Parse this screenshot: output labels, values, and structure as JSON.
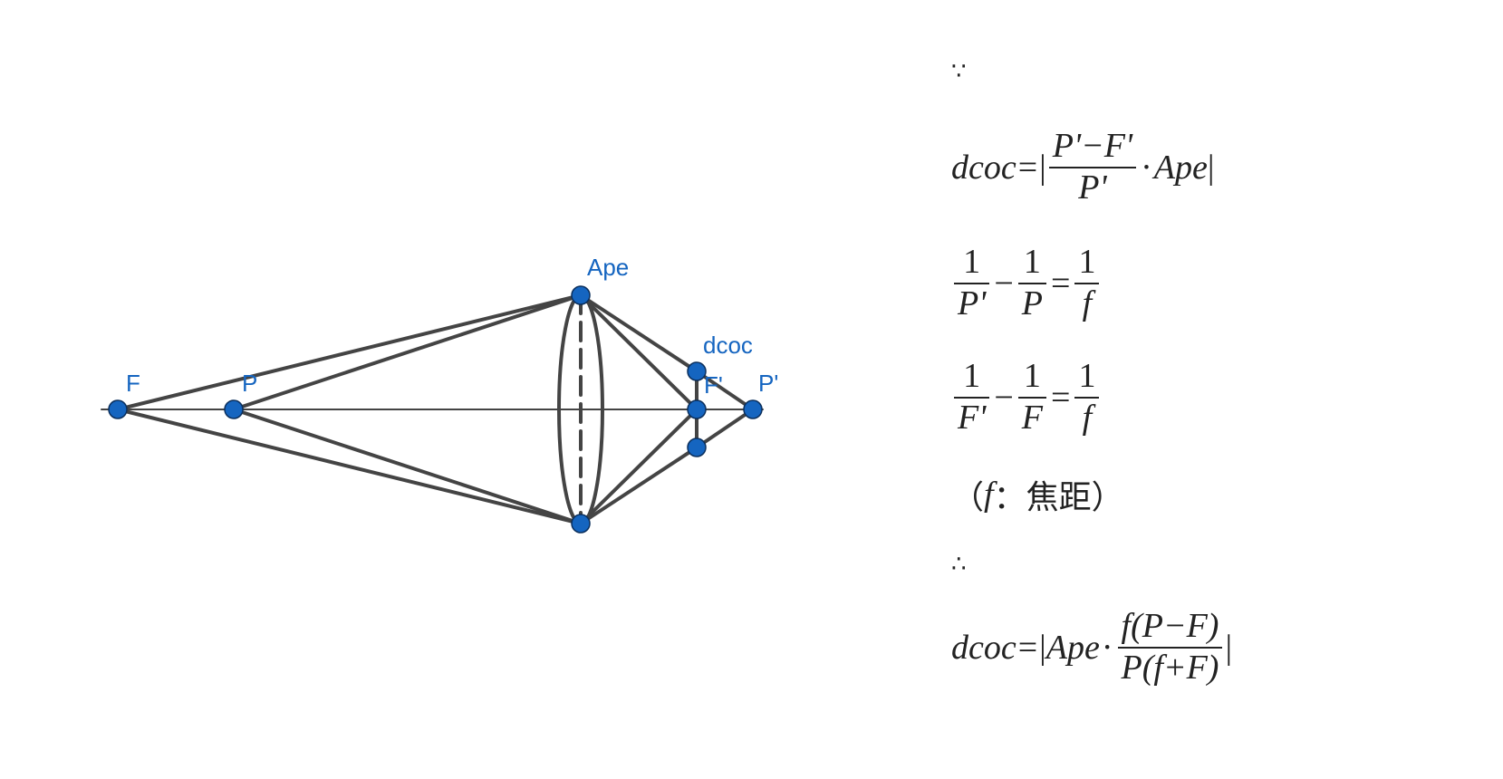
{
  "diagram": {
    "labels": {
      "F": "F",
      "P": "P",
      "Ape": "Ape",
      "dcoc": "dcoc",
      "F_prime": "F'",
      "P_prime": "P'"
    },
    "colors": {
      "point_fill": "#1565c0",
      "line": "#444444",
      "label": "#1565c0"
    }
  },
  "formulas": {
    "because": "∵",
    "f1": {
      "lhs": "dcoc",
      "eq": "=",
      "abs": "|",
      "num": "P'−F'",
      "den": "P'",
      "dot": "·",
      "tail": "Ape"
    },
    "f2": {
      "a_num": "1",
      "a_den": "P'",
      "minus": "−",
      "b_num": "1",
      "b_den": "P",
      "eq": "=",
      "c_num": "1",
      "c_den": "f"
    },
    "f3": {
      "a_num": "1",
      "a_den": "F'",
      "minus": "−",
      "b_num": "1",
      "b_den": "F",
      "eq": "=",
      "c_num": "1",
      "c_den": "f"
    },
    "note": {
      "open": "（",
      "var": "f",
      "rest": "：焦距）"
    },
    "therefore": "∴",
    "f4": {
      "lhs": "dcoc",
      "eq": "=",
      "abs": "|",
      "ape": "Ape",
      "dot": "·",
      "num": "f(P−F)",
      "den": "P(f+F)"
    }
  }
}
